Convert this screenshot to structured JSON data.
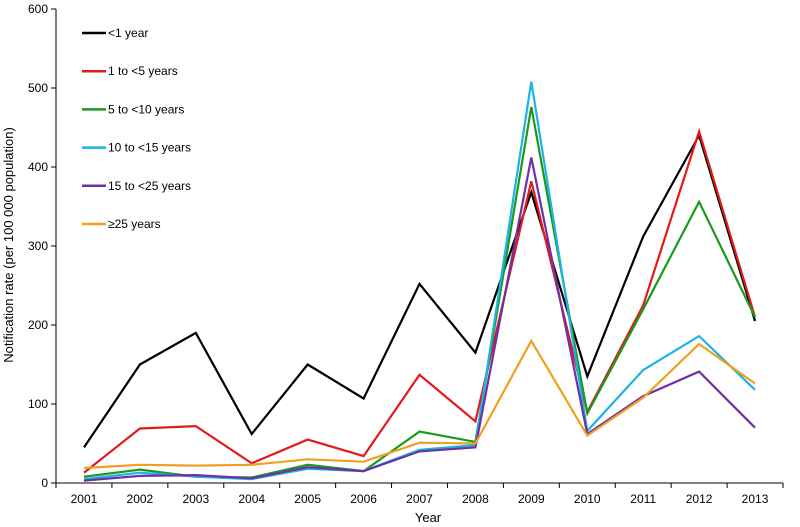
{
  "chart_data": {
    "type": "line",
    "title": "",
    "xlabel": "Year",
    "ylabel": "Notification rate (per 100 000 population)",
    "ylim": [
      0,
      600
    ],
    "yticks": [
      "0",
      "100",
      "200",
      "300",
      "400",
      "500",
      "600"
    ],
    "categories": [
      "2001",
      "2002",
      "2003",
      "2004",
      "2005",
      "2006",
      "2007",
      "2008",
      "2009",
      "2010",
      "2011",
      "2012",
      "2013"
    ],
    "legend_position": "top-left",
    "grid": false,
    "series": [
      {
        "name": "<1 year",
        "color": "#000000",
        "values": [
          45,
          150,
          190,
          62,
          150,
          107,
          252,
          165,
          368,
          135,
          312,
          440,
          205
        ]
      },
      {
        "name": "1 to <5 years",
        "color": "#e31a1c",
        "values": [
          13,
          69,
          72,
          25,
          55,
          34,
          137,
          78,
          382,
          90,
          225,
          445,
          210
        ]
      },
      {
        "name": "5 to <10 years",
        "color": "#1a9a1a",
        "values": [
          8,
          17,
          8,
          7,
          23,
          15,
          65,
          52,
          476,
          88,
          220,
          356,
          210
        ]
      },
      {
        "name": "10 to <15 years",
        "color": "#1eb3e6",
        "values": [
          5,
          13,
          8,
          5,
          18,
          15,
          42,
          48,
          508,
          66,
          143,
          186,
          118
        ]
      },
      {
        "name": "15 to <25 years",
        "color": "#7030a0",
        "values": [
          3,
          9,
          10,
          6,
          20,
          15,
          40,
          45,
          412,
          62,
          110,
          141,
          70
        ]
      },
      {
        "name": "≥25 years",
        "color": "#f0a020",
        "values": [
          19,
          23,
          22,
          23,
          30,
          27,
          51,
          50,
          180,
          60,
          108,
          176,
          126
        ]
      }
    ]
  }
}
